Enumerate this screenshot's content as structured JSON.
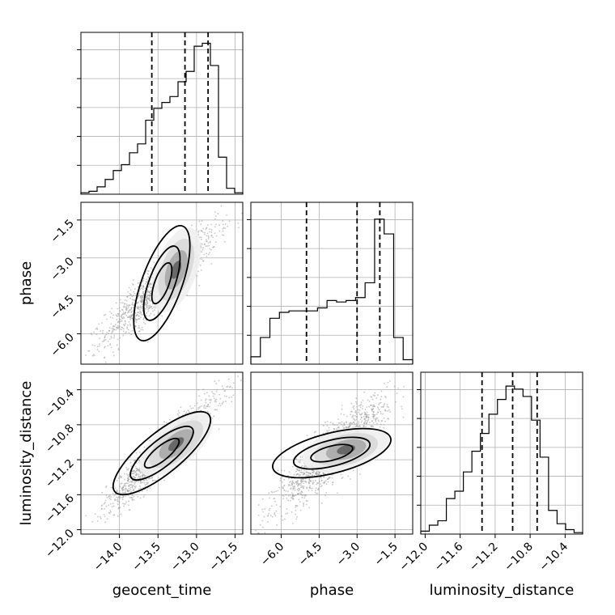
{
  "chart_data": {
    "type": "corner",
    "parameters": [
      {
        "name": "geocent_time",
        "range": [
          -14.5,
          -12.4
        ],
        "ticks": [
          -14.0,
          -13.5,
          -13.0,
          -12.5
        ],
        "tick_labels": [
          "−14.0",
          "−13.5",
          "−13.0",
          "−12.5"
        ],
        "quantiles": [
          -13.58,
          -13.15,
          -12.85
        ]
      },
      {
        "name": "phase",
        "range": [
          -7.2,
          -0.8
        ],
        "ticks": [
          -6.0,
          -4.5,
          -3.0,
          -1.5
        ],
        "tick_labels": [
          "−6.0",
          "−4.5",
          "−3.0",
          "−1.5"
        ],
        "quantiles": [
          -5.0,
          -3.0,
          -2.1
        ]
      },
      {
        "name": "luminosity_distance",
        "range": [
          -12.05,
          -10.2
        ],
        "ticks": [
          -12.0,
          -11.6,
          -11.2,
          -10.8,
          -10.4
        ],
        "tick_labels": [
          "−12.0",
          "−11.6",
          "−11.2",
          "−10.8",
          "−10.4"
        ],
        "quantiles": [
          -11.35,
          -11.0,
          -10.72
        ]
      }
    ],
    "histograms": [
      [
        0.01,
        0.02,
        0.05,
        0.1,
        0.16,
        0.2,
        0.28,
        0.34,
        0.5,
        0.58,
        0.62,
        0.66,
        0.76,
        0.83,
        1.0,
        1.02,
        0.87,
        0.25,
        0.04,
        0.01
      ],
      [
        0.05,
        0.18,
        0.31,
        0.35,
        0.36,
        0.36,
        0.36,
        0.38,
        0.43,
        0.42,
        0.43,
        0.45,
        0.55,
        0.98,
        0.88,
        0.18,
        0.03
      ],
      [
        0.02,
        0.06,
        0.09,
        0.24,
        0.29,
        0.42,
        0.56,
        0.68,
        0.81,
        0.91,
        1.0,
        0.98,
        0.93,
        0.77,
        0.52,
        0.16,
        0.07,
        0.03,
        0.01
      ]
    ],
    "pairs": [
      {
        "x": "geocent_time",
        "y": "phase",
        "correlation": 0.9
      },
      {
        "x": "geocent_time",
        "y": "luminosity_distance",
        "correlation": 0.93
      },
      {
        "x": "phase",
        "y": "luminosity_distance",
        "correlation": 0.88
      }
    ],
    "grid": true
  }
}
